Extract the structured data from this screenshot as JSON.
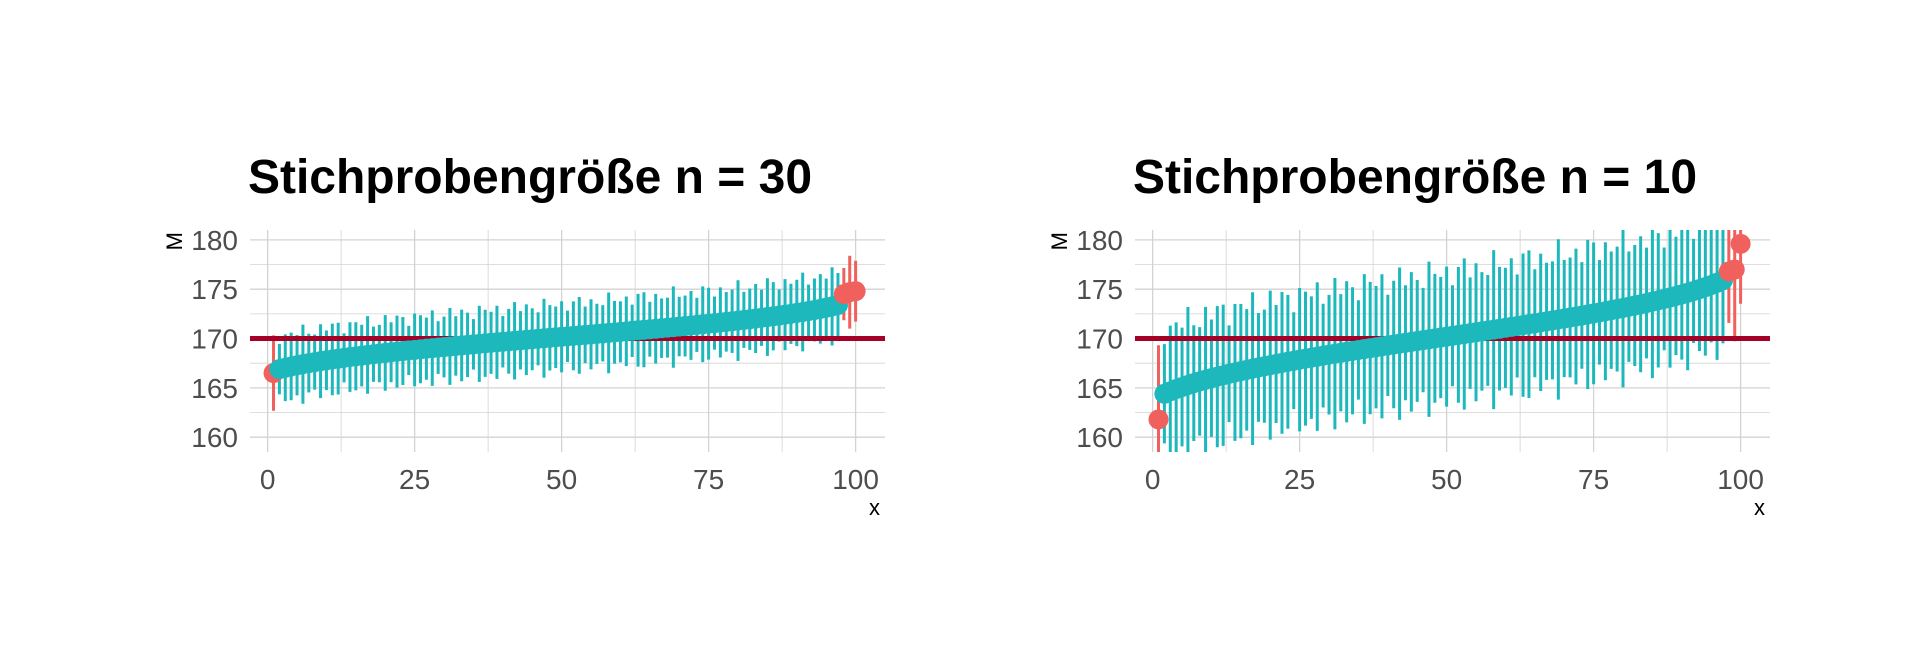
{
  "colors": {
    "covers": "#1CB8BC",
    "misses": "#F0605C",
    "reference_line": "#A50026",
    "grid": "#D3D3D3",
    "tick_text": "#4D4D4D"
  },
  "chart_data": [
    {
      "type": "scatter",
      "title": "Stichprobengröße n = 30",
      "xlabel": "x",
      "ylabel": "M",
      "xlim": [
        -3,
        105
      ],
      "ylim": [
        158.5,
        181
      ],
      "xticks": [
        "0",
        "25",
        "50",
        "75",
        "100"
      ],
      "yticks": [
        "160",
        "165",
        "170",
        "175",
        "180"
      ],
      "reference_line": 170,
      "grid": true,
      "marks": "point with vertical interval bar; color by whether the interval contains the reference value",
      "mean_range": [
        166.5,
        174.8
      ],
      "n_intervals": 100,
      "half_width_typical": 3.3,
      "missed_indices": [
        1,
        98,
        99,
        100
      ],
      "missed_means": [
        166.5,
        174.5,
        174.7,
        174.8
      ],
      "covered_mean_range": [
        166.9,
        173.4
      ]
    },
    {
      "type": "scatter",
      "title": "Stichprobengröße n = 10",
      "xlabel": "x",
      "ylabel": "M",
      "xlim": [
        -3,
        105
      ],
      "ylim": [
        158.5,
        181
      ],
      "xticks": [
        "0",
        "25",
        "50",
        "75",
        "100"
      ],
      "yticks": [
        "160",
        "165",
        "170",
        "175",
        "180"
      ],
      "reference_line": 170,
      "grid": true,
      "marks": "point with vertical interval bar; color by whether the interval contains the reference value",
      "mean_range": [
        161.8,
        179.6
      ],
      "n_intervals": 100,
      "half_width_typical": 6.5,
      "missed_indices": [
        1,
        98,
        99,
        100
      ],
      "missed_means": [
        161.8,
        176.8,
        177.0,
        179.6
      ],
      "covered_mean_range": [
        164.4,
        175.9
      ]
    }
  ]
}
